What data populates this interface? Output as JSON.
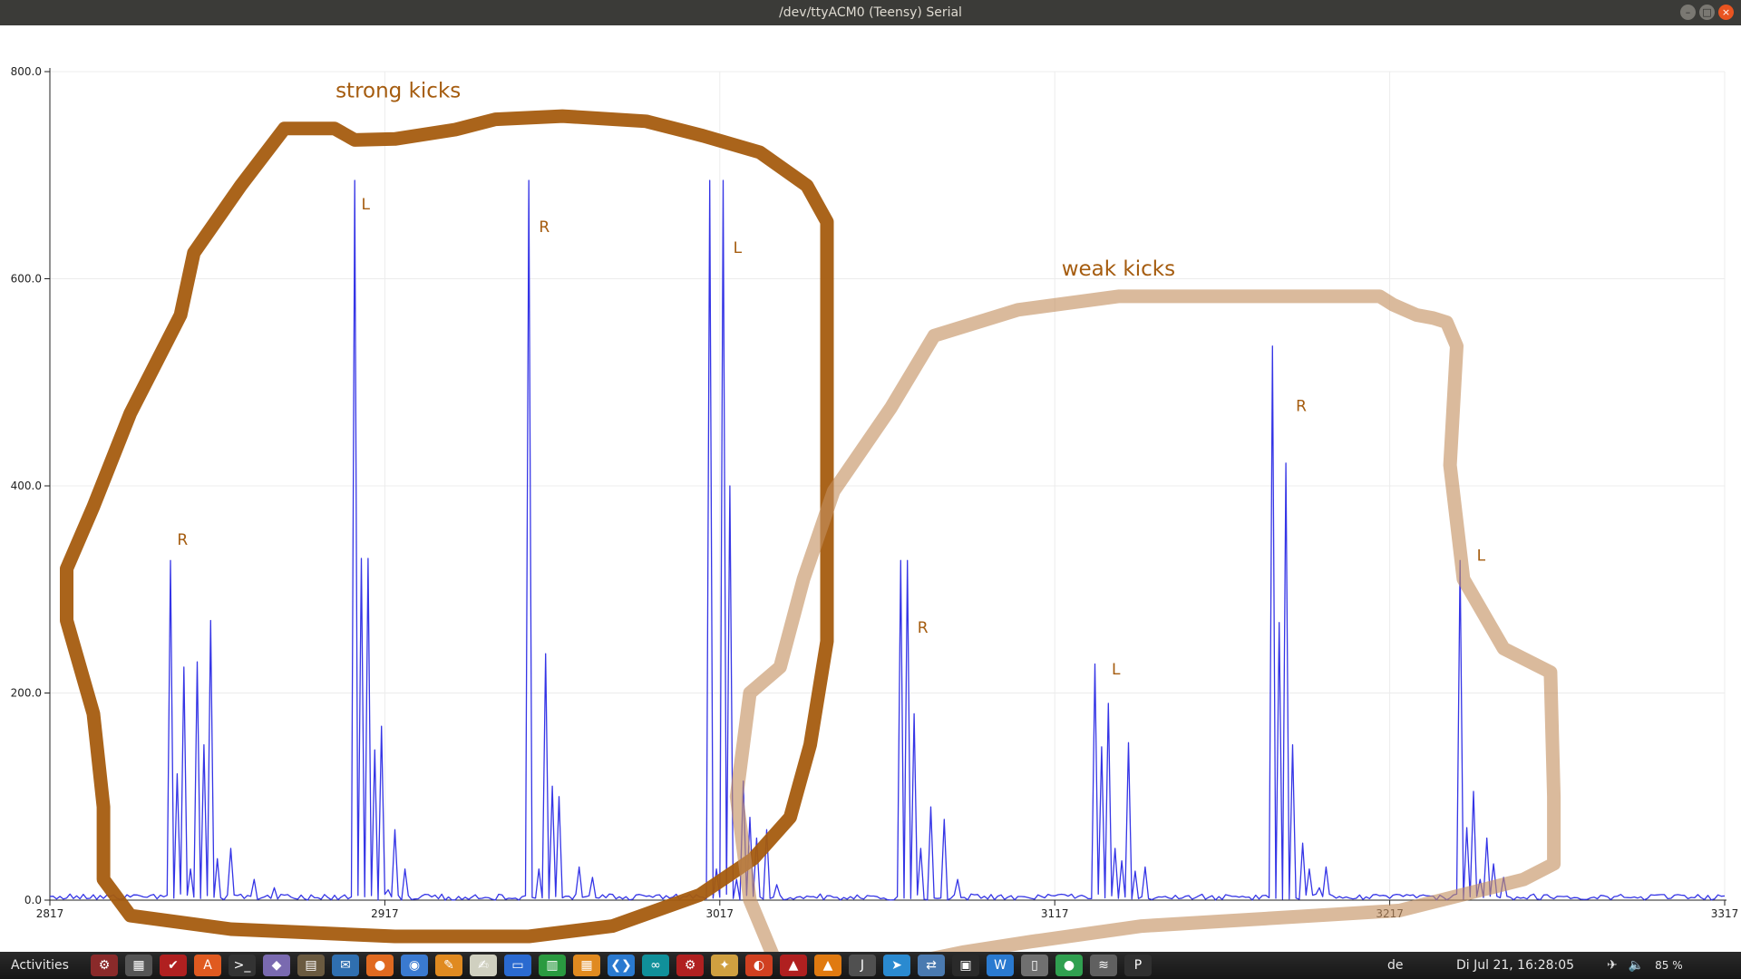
{
  "window": {
    "title": "/dev/ttyACM0 (Teensy) Serial",
    "buttons": [
      "–",
      "□",
      "×"
    ]
  },
  "chart_data": {
    "type": "line",
    "title": "",
    "xlabel": "",
    "ylabel": "",
    "xlim": [
      2817,
      3317
    ],
    "ylim": [
      0,
      800
    ],
    "x_ticks": [
      2817,
      2917,
      3017,
      3117,
      3217,
      3317
    ],
    "x_tick_labels": [
      "2817",
      "2917",
      "3017",
      "3117",
      "3217",
      "3317"
    ],
    "y_ticks": [
      0,
      200,
      400,
      600,
      800
    ],
    "y_tick_labels": [
      "0.0",
      "200.0",
      "400.0",
      "600.0",
      "800.0"
    ],
    "grid": true,
    "line_color": "#3535e6",
    "baseline": 3,
    "peaks": [
      {
        "x": 2853,
        "y": 328
      },
      {
        "x": 2855,
        "y": 122
      },
      {
        "x": 2857,
        "y": 225
      },
      {
        "x": 2859,
        "y": 30
      },
      {
        "x": 2861,
        "y": 230
      },
      {
        "x": 2863,
        "y": 150
      },
      {
        "x": 2865,
        "y": 270
      },
      {
        "x": 2867,
        "y": 40
      },
      {
        "x": 2871,
        "y": 50
      },
      {
        "x": 2878,
        "y": 20
      },
      {
        "x": 2884,
        "y": 12
      },
      {
        "x": 2908,
        "y": 695
      },
      {
        "x": 2910,
        "y": 330
      },
      {
        "x": 2912,
        "y": 330
      },
      {
        "x": 2914,
        "y": 145
      },
      {
        "x": 2916,
        "y": 168
      },
      {
        "x": 2918,
        "y": 10
      },
      {
        "x": 2920,
        "y": 68
      },
      {
        "x": 2923,
        "y": 30
      },
      {
        "x": 2960,
        "y": 695
      },
      {
        "x": 2963,
        "y": 30
      },
      {
        "x": 2965,
        "y": 238
      },
      {
        "x": 2967,
        "y": 110
      },
      {
        "x": 2969,
        "y": 100
      },
      {
        "x": 2975,
        "y": 32
      },
      {
        "x": 2979,
        "y": 22
      },
      {
        "x": 3014,
        "y": 695
      },
      {
        "x": 3016,
        "y": 30
      },
      {
        "x": 3018,
        "y": 695
      },
      {
        "x": 3020,
        "y": 400
      },
      {
        "x": 3022,
        "y": 20
      },
      {
        "x": 3024,
        "y": 115
      },
      {
        "x": 3026,
        "y": 80
      },
      {
        "x": 3028,
        "y": 60
      },
      {
        "x": 3031,
        "y": 68
      },
      {
        "x": 3034,
        "y": 15
      },
      {
        "x": 3071,
        "y": 328
      },
      {
        "x": 3073,
        "y": 328
      },
      {
        "x": 3075,
        "y": 180
      },
      {
        "x": 3077,
        "y": 50
      },
      {
        "x": 3080,
        "y": 90
      },
      {
        "x": 3084,
        "y": 78
      },
      {
        "x": 3088,
        "y": 20
      },
      {
        "x": 3129,
        "y": 228
      },
      {
        "x": 3131,
        "y": 148
      },
      {
        "x": 3133,
        "y": 190
      },
      {
        "x": 3135,
        "y": 50
      },
      {
        "x": 3137,
        "y": 38
      },
      {
        "x": 3139,
        "y": 152
      },
      {
        "x": 3141,
        "y": 28
      },
      {
        "x": 3144,
        "y": 32
      },
      {
        "x": 3182,
        "y": 535
      },
      {
        "x": 3184,
        "y": 268
      },
      {
        "x": 3186,
        "y": 422
      },
      {
        "x": 3188,
        "y": 150
      },
      {
        "x": 3191,
        "y": 55
      },
      {
        "x": 3193,
        "y": 30
      },
      {
        "x": 3196,
        "y": 12
      },
      {
        "x": 3198,
        "y": 32
      },
      {
        "x": 3238,
        "y": 328
      },
      {
        "x": 3240,
        "y": 70
      },
      {
        "x": 3242,
        "y": 105
      },
      {
        "x": 3244,
        "y": 20
      },
      {
        "x": 3246,
        "y": 60
      },
      {
        "x": 3248,
        "y": 35
      },
      {
        "x": 3251,
        "y": 22
      }
    ],
    "annotations": [
      {
        "text": "strong kicks",
        "x": 2921,
        "y": 775
      },
      {
        "text": "weak kicks",
        "x": 3136,
        "y": 603
      },
      {
        "text": "R",
        "x": 2855,
        "y": 343
      },
      {
        "text": "L",
        "x": 2910,
        "y": 667
      },
      {
        "text": "R",
        "x": 2963,
        "y": 645
      },
      {
        "text": "L",
        "x": 3021,
        "y": 625
      },
      {
        "text": "R",
        "x": 3076,
        "y": 258
      },
      {
        "text": "L",
        "x": 3134,
        "y": 218
      },
      {
        "text": "R",
        "x": 3189,
        "y": 472
      },
      {
        "text": "L",
        "x": 3243,
        "y": 328
      }
    ],
    "outlines": [
      {
        "name": "strong",
        "color": "#a55c0f",
        "opacity": 0.95,
        "points": [
          [
            2887,
            745
          ],
          [
            2902,
            745
          ],
          [
            2908,
            734
          ],
          [
            2920,
            735
          ],
          [
            2938,
            744
          ],
          [
            2950,
            754
          ],
          [
            2970,
            757
          ],
          [
            2995,
            752
          ],
          [
            3012,
            738
          ],
          [
            3029,
            722
          ],
          [
            3043,
            690
          ],
          [
            3049,
            655
          ],
          [
            3049,
            250
          ],
          [
            3044,
            150
          ],
          [
            3038,
            80
          ],
          [
            3027,
            40
          ],
          [
            3011,
            5
          ],
          [
            2985,
            -25
          ],
          [
            2960,
            -35
          ],
          [
            2920,
            -35
          ],
          [
            2871,
            -28
          ],
          [
            2841,
            -15
          ],
          [
            2833,
            20
          ],
          [
            2833,
            90
          ],
          [
            2830,
            180
          ],
          [
            2822,
            270
          ],
          [
            2822,
            320
          ],
          [
            2830,
            380
          ],
          [
            2841,
            470
          ],
          [
            2856,
            565
          ],
          [
            2860,
            625
          ],
          [
            2874,
            690
          ],
          [
            2887,
            745
          ]
        ]
      },
      {
        "name": "weak",
        "color": "#c38f5f",
        "opacity": 0.62,
        "points": [
          [
            3035,
            -70
          ],
          [
            3026,
            0
          ],
          [
            3022,
            100
          ],
          [
            3026,
            200
          ],
          [
            3035,
            225
          ],
          [
            3042,
            310
          ],
          [
            3051,
            395
          ],
          [
            3068,
            475
          ],
          [
            3081,
            545
          ],
          [
            3106,
            570
          ],
          [
            3136,
            583
          ],
          [
            3214,
            583
          ],
          [
            3218,
            575
          ],
          [
            3225,
            565
          ],
          [
            3230,
            562
          ],
          [
            3234,
            558
          ],
          [
            3237,
            535
          ],
          [
            3235,
            420
          ],
          [
            3239,
            310
          ],
          [
            3251,
            243
          ],
          [
            3265,
            220
          ],
          [
            3266,
            100
          ],
          [
            3266,
            35
          ],
          [
            3257,
            20
          ],
          [
            3220,
            -10
          ],
          [
            3143,
            -25
          ],
          [
            3110,
            -40
          ],
          [
            3090,
            -50
          ],
          [
            3060,
            -70
          ]
        ]
      }
    ]
  },
  "taskbar": {
    "activities": "Activities",
    "language": "de",
    "clock": "Di Jul 21, 16:28:05",
    "battery": "85 %",
    "apps": [
      {
        "name": "settings-app-icon",
        "glyph": "⚙",
        "color": "#8a2a2a"
      },
      {
        "name": "calculator-app-icon",
        "glyph": "▦",
        "color": "#555"
      },
      {
        "name": "todo-app-icon",
        "glyph": "✔",
        "color": "#b02020"
      },
      {
        "name": "software-center-icon",
        "glyph": "A",
        "color": "#e05a20"
      },
      {
        "name": "terminal-app-icon",
        "glyph": ">_",
        "color": "#333"
      },
      {
        "name": "gem-app-icon",
        "glyph": "◆",
        "color": "#7a6ab0"
      },
      {
        "name": "archive-app-icon",
        "glyph": "▤",
        "color": "#6a5a40"
      },
      {
        "name": "mail-app-icon",
        "glyph": "✉",
        "color": "#2f6fb0"
      },
      {
        "name": "firefox-app-icon",
        "glyph": "●",
        "color": "#e06a20"
      },
      {
        "name": "chromium-app-icon",
        "glyph": "◉",
        "color": "#3a7ad0"
      },
      {
        "name": "notes-app-icon",
        "glyph": "✎",
        "color": "#e08a20"
      },
      {
        "name": "text-editor-icon",
        "glyph": "✍",
        "color": "#d0d0c0"
      },
      {
        "name": "document-app-icon",
        "glyph": "▭",
        "color": "#2a6ad0"
      },
      {
        "name": "spreadsheet-app-icon",
        "glyph": "▥",
        "color": "#2a9a40"
      },
      {
        "name": "sheets-app-icon",
        "glyph": "▦",
        "color": "#e08a20"
      },
      {
        "name": "vscode-app-icon",
        "glyph": "❮❯",
        "color": "#2a7ad0"
      },
      {
        "name": "arduino-app-icon",
        "glyph": "∞",
        "color": "#10909a"
      },
      {
        "name": "hardware-app-icon",
        "glyph": "⚙",
        "color": "#b02020"
      },
      {
        "name": "inkscape-app-icon",
        "glyph": "✦",
        "color": "#d0a040"
      },
      {
        "name": "vpn-app-icon",
        "glyph": "◐",
        "color": "#d04020"
      },
      {
        "name": "tool-app-icon",
        "glyph": "▲",
        "color": "#b02020"
      },
      {
        "name": "vlc-app-icon",
        "glyph": "▲",
        "color": "#e07a10"
      },
      {
        "name": "jdk-app-icon",
        "glyph": "J",
        "color": "#505050"
      },
      {
        "name": "telegram-app-icon",
        "glyph": "➤",
        "color": "#2a8ad0"
      },
      {
        "name": "network-app-icon",
        "glyph": "⇄",
        "color": "#4a7ab0"
      },
      {
        "name": "screen-app-icon",
        "glyph": "▣",
        "color": "#2a2a2a"
      },
      {
        "name": "monitor-app-icon",
        "glyph": "W",
        "color": "#2a7ad0"
      },
      {
        "name": "drive-app-icon",
        "glyph": "▯",
        "color": "#707070"
      },
      {
        "name": "green-app-icon",
        "glyph": "●",
        "color": "#30a050"
      },
      {
        "name": "graph-app-icon",
        "glyph": "≋",
        "color": "#606060"
      },
      {
        "name": "pomodoro-app-icon",
        "glyph": "P",
        "color": "#303030"
      }
    ]
  }
}
